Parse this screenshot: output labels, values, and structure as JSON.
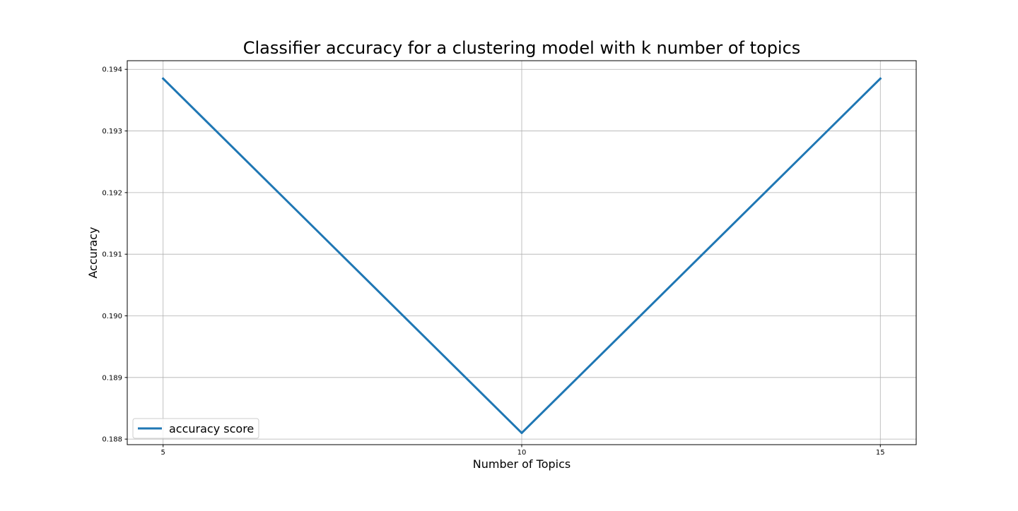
{
  "chart_data": {
    "type": "line",
    "title": "Classifier accuracy for a clustering model with k number of topics",
    "xlabel": "Number of Topics",
    "ylabel": "Accuracy",
    "x": [
      5,
      10,
      15
    ],
    "x_ticks": [
      "5",
      "10",
      "15"
    ],
    "y_ticks": [
      "0.188",
      "0.189",
      "0.190",
      "0.191",
      "0.192",
      "0.193",
      "0.194"
    ],
    "xlim": [
      4.5,
      15.5
    ],
    "ylim": [
      0.18791,
      0.19414
    ],
    "grid": true,
    "legend_position": "lower left",
    "series": [
      {
        "name": "accuracy score",
        "values": [
          0.19385,
          0.1881,
          0.19385
        ],
        "color": "#1f77b4"
      }
    ]
  }
}
